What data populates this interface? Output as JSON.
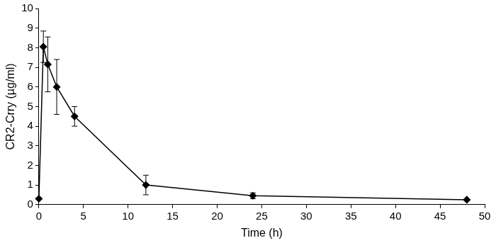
{
  "chart_data": {
    "type": "line",
    "x_label": "Time (h)",
    "y_label": "CR2-Crry (µg/ml)",
    "x": [
      0,
      0.5,
      1,
      2,
      4,
      12,
      24,
      48
    ],
    "values": [
      0.3,
      8.05,
      7.15,
      6.0,
      4.5,
      1.0,
      0.45,
      0.25
    ],
    "errors": [
      null,
      0.8,
      1.4,
      1.4,
      0.5,
      0.5,
      0.15,
      null
    ],
    "color": "#000000",
    "marker": "diamond",
    "line_style": "solid",
    "xlim": [
      0,
      50
    ],
    "xticks": [
      0,
      5,
      10,
      15,
      20,
      25,
      30,
      35,
      40,
      45,
      50
    ],
    "ylim": [
      0,
      10
    ],
    "yticks": [
      0,
      1,
      2,
      3,
      4,
      5,
      6,
      7,
      8,
      9,
      10
    ],
    "grid": false
  }
}
